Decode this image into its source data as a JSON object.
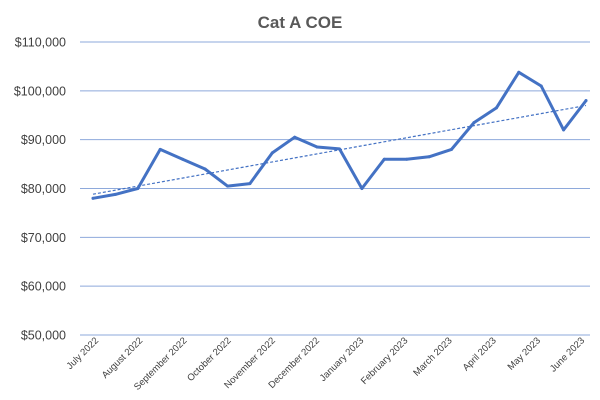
{
  "chart_data": {
    "type": "line",
    "title": "Cat A COE",
    "xlabel": "",
    "ylabel": "",
    "ylim": [
      50000,
      110000
    ],
    "yticks": [
      50000,
      60000,
      70000,
      80000,
      90000,
      100000,
      110000
    ],
    "ytick_labels": [
      "$50,000",
      "$60,000",
      "$70,000",
      "$80,000",
      "$90,000",
      "$100,000",
      "$110,000"
    ],
    "x_labels": [
      "July 2022",
      "August 2022",
      "September 2022",
      "October 2022",
      "November 2022",
      "December 2022",
      "January 2023",
      "February 2023",
      "March 2023",
      "April 2023",
      "May 2023",
      "June 2023"
    ],
    "grid": true,
    "legend": false,
    "series": [
      {
        "values": [
          78000,
          78800,
          80000,
          88000,
          86000,
          84000,
          80500,
          81000,
          87300,
          90500,
          88500,
          88100,
          80000,
          86000,
          86000,
          86500,
          88000,
          93500,
          96500,
          103800,
          101000,
          92000,
          98000
        ]
      }
    ],
    "trendline": {
      "type": "linear",
      "style": "dashed"
    },
    "colors": {
      "series": "#4472c4",
      "grid": "#8ea9db",
      "text": "#404040",
      "title": "#595959"
    }
  }
}
